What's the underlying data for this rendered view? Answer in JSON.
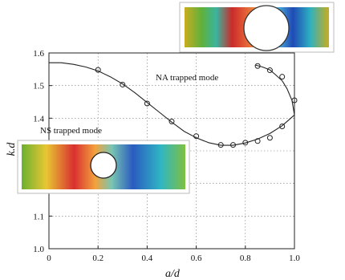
{
  "chart_data": {
    "type": "line",
    "xlabel": "a/d",
    "ylabel": "k.d",
    "xlim": [
      0,
      1.0
    ],
    "ylim": [
      1.0,
      1.6
    ],
    "xticks": [
      0,
      0.2,
      0.4,
      0.6,
      0.8,
      1.0
    ],
    "yticks": [
      1.0,
      1.1,
      1.2,
      1.3,
      1.4,
      1.5,
      1.6
    ],
    "xtick_labels": [
      "0",
      "0.2",
      "0.4",
      "0.6",
      "0.8",
      "1.0"
    ],
    "ytick_labels": [
      "1.0",
      "1.1",
      "1.2",
      "1.3",
      "1.4",
      "1.5",
      "1.6"
    ],
    "grid": true,
    "series": [
      {
        "style": "solid-line",
        "x": [
          0,
          0.05,
          0.1,
          0.15,
          0.2,
          0.25,
          0.3,
          0.35,
          0.4,
          0.45,
          0.5,
          0.55,
          0.6,
          0.65,
          0.7,
          0.75,
          0.8,
          0.85,
          0.9,
          0.95,
          1.0,
          0.99,
          0.97,
          0.95,
          0.92,
          0.9,
          0.87,
          0.84
        ],
        "y": [
          1.57,
          1.57,
          1.565,
          1.557,
          1.545,
          1.527,
          1.505,
          1.478,
          1.448,
          1.418,
          1.388,
          1.36,
          1.34,
          1.325,
          1.317,
          1.317,
          1.324,
          1.336,
          1.353,
          1.377,
          1.41,
          1.455,
          1.49,
          1.515,
          1.535,
          1.548,
          1.557,
          1.563
        ]
      },
      {
        "style": "open-circle-markers",
        "x": [
          0.2,
          0.3,
          0.4,
          0.5,
          0.6,
          0.7,
          0.75,
          0.8,
          0.85,
          0.9,
          0.95,
          1.0,
          0.95,
          0.9,
          0.85
        ],
        "y": [
          1.548,
          1.503,
          1.445,
          1.39,
          1.345,
          1.318,
          1.318,
          1.325,
          1.33,
          1.34,
          1.375,
          1.455,
          1.527,
          1.547,
          1.56
        ]
      }
    ],
    "annotations": [
      "NA trapped mode",
      "NS trapped mode"
    ]
  }
}
